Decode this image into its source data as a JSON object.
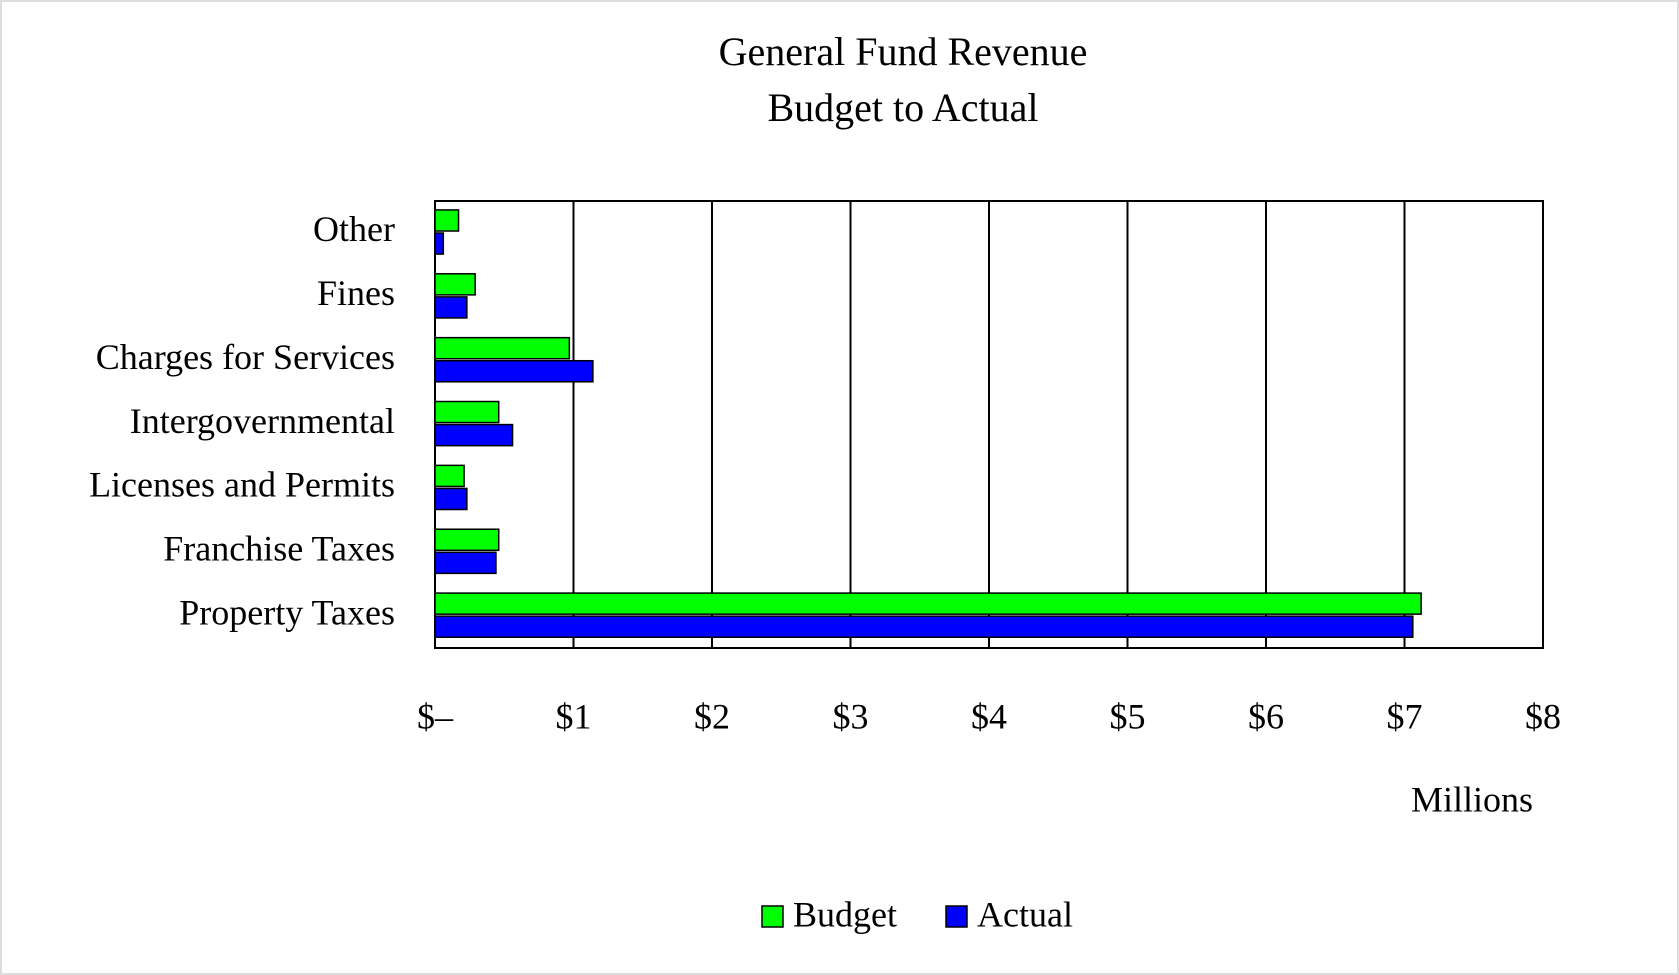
{
  "chart_data": {
    "type": "bar",
    "orientation": "horizontal",
    "title": "General Fund Revenue",
    "subtitle": "Budget to Actual",
    "x_label": "Millions",
    "categories": [
      "Other",
      "Fines",
      "Charges for Services",
      "Intergovernmental",
      "Licenses and Permits",
      "Franchise Taxes",
      "Property Taxes"
    ],
    "series": [
      {
        "name": "Budget",
        "color": "#00ff00",
        "values": [
          0.17,
          0.29,
          0.97,
          0.46,
          0.21,
          0.46,
          7.12
        ]
      },
      {
        "name": "Actual",
        "color": "#0000ff",
        "values": [
          0.06,
          0.23,
          1.14,
          0.56,
          0.23,
          0.44,
          7.06
        ]
      }
    ],
    "xlim": [
      0,
      8
    ],
    "xticks": [
      {
        "value": 0,
        "label": "$–"
      },
      {
        "value": 1,
        "label": "$1"
      },
      {
        "value": 2,
        "label": "$2"
      },
      {
        "value": 3,
        "label": "$3"
      },
      {
        "value": 4,
        "label": "$4"
      },
      {
        "value": 5,
        "label": "$5"
      },
      {
        "value": 6,
        "label": "$6"
      },
      {
        "value": 7,
        "label": "$7"
      },
      {
        "value": 8,
        "label": "$8"
      }
    ],
    "grid": true,
    "legend": "bottom"
  }
}
